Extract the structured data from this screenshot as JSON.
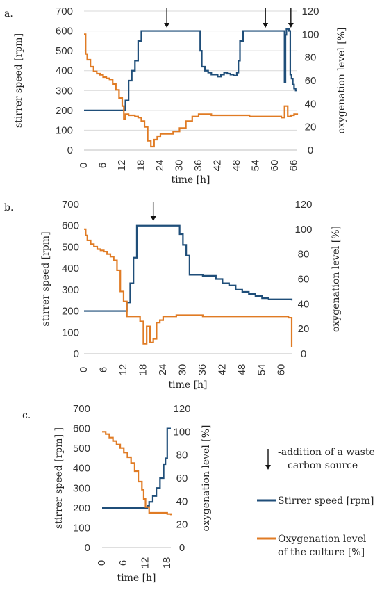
{
  "colors": {
    "stirrer": "#1F4E79",
    "oxygen": "#E07B24"
  },
  "legend": {
    "arrow_text_1": "-addition of a waste",
    "arrow_text_2": "carbon source",
    "stirrer_label": "Stirrer speed [rpm]",
    "oxygen_label_1": "Oxygenation level",
    "oxygen_label_2": "of the culture [%]"
  },
  "chart_data": [
    {
      "panel_label": "a.",
      "type": "line",
      "xlabel": "time [h]",
      "ylabel": "stirrer speed [rpm]",
      "y2label": "oxygenation level [%]",
      "xlim": [
        0,
        67
      ],
      "xticks": [
        0,
        6,
        12,
        18,
        24,
        30,
        36,
        42,
        48,
        54,
        60,
        66
      ],
      "ylim": [
        0,
        700
      ],
      "yticks": [
        0,
        100,
        200,
        300,
        400,
        500,
        600,
        700
      ],
      "y2lim": [
        0,
        120
      ],
      "y2ticks": [
        0,
        20,
        40,
        60,
        80,
        100,
        120
      ],
      "grid": true,
      "arrows_x": [
        26,
        57,
        65
      ],
      "series": [
        {
          "name": "Stirrer speed [rpm]",
          "axis": "left",
          "x": [
            0,
            12,
            13,
            14,
            15,
            16,
            17,
            18,
            20,
            24,
            28,
            32,
            36,
            36.5,
            37,
            38,
            39,
            40,
            41,
            42,
            43,
            44,
            45,
            46,
            47,
            48,
            48.5,
            49,
            50,
            54,
            58,
            62,
            63,
            63.3,
            63.6,
            64,
            64.4,
            64.8,
            65.2,
            65.6,
            66,
            66.5,
            67
          ],
          "values": [
            200,
            200,
            250,
            350,
            400,
            450,
            550,
            600,
            600,
            600,
            600,
            600,
            600,
            500,
            420,
            400,
            390,
            380,
            380,
            370,
            380,
            390,
            385,
            380,
            375,
            390,
            450,
            550,
            600,
            600,
            600,
            600,
            340,
            580,
            610,
            610,
            600,
            380,
            360,
            330,
            310,
            300,
            300
          ]
        },
        {
          "name": "Oxygenation level of the culture [%]",
          "axis": "right",
          "x": [
            0,
            0.5,
            1,
            2,
            3,
            4,
            5,
            6,
            7,
            8,
            9,
            10,
            11,
            12,
            12.5,
            13,
            14,
            15,
            16,
            17,
            18,
            19,
            20,
            21,
            22,
            23,
            24,
            26,
            28,
            30,
            32,
            34,
            36,
            40,
            44,
            48,
            52,
            56,
            60,
            62,
            63,
            64,
            65,
            66,
            67
          ],
          "values": [
            100,
            83,
            78,
            72,
            68,
            66,
            65,
            63,
            62,
            61,
            57,
            52,
            45,
            38,
            27,
            31,
            30,
            30,
            29,
            28,
            25,
            20,
            8,
            3,
            9,
            12,
            14,
            14,
            16,
            19,
            25,
            29,
            31,
            30,
            30,
            30,
            29,
            29,
            29,
            28,
            38,
            29,
            30,
            31,
            30
          ]
        }
      ]
    },
    {
      "panel_label": "b.",
      "type": "line",
      "xlabel": "time [h]",
      "ylabel": "stirrer speed [rpm]",
      "y2label": "oxygenation level [%]",
      "xlim": [
        0,
        63
      ],
      "xticks": [
        0,
        6,
        12,
        18,
        24,
        30,
        36,
        42,
        48,
        54,
        60
      ],
      "ylim": [
        0,
        700
      ],
      "yticks": [
        0,
        100,
        200,
        300,
        400,
        500,
        600,
        700
      ],
      "y2lim": [
        0,
        120
      ],
      "y2ticks": [
        0,
        20,
        40,
        60,
        80,
        100,
        120
      ],
      "grid": false,
      "arrows_x": [
        21
      ],
      "series": [
        {
          "name": "Stirrer speed [rpm]",
          "axis": "left",
          "x": [
            0,
            11,
            12,
            13,
            14,
            15,
            16,
            17,
            20,
            24,
            28,
            29,
            30,
            31,
            32,
            33,
            36,
            40,
            42,
            44,
            46,
            48,
            50,
            52,
            54,
            56,
            58,
            60,
            62,
            63
          ],
          "values": [
            200,
            200,
            200,
            240,
            330,
            450,
            600,
            600,
            600,
            600,
            600,
            560,
            510,
            460,
            370,
            370,
            365,
            350,
            330,
            320,
            300,
            290,
            280,
            270,
            260,
            255,
            255,
            255,
            255,
            250
          ]
        },
        {
          "name": "Oxygenation level of the culture [%]",
          "axis": "right",
          "x": [
            0,
            0.5,
            1,
            2,
            3,
            4,
            5,
            6,
            7,
            8,
            9,
            10,
            11,
            12,
            13,
            14,
            15,
            16,
            17,
            18,
            19,
            20,
            21,
            22,
            23,
            24,
            26,
            28,
            30,
            36,
            42,
            48,
            54,
            58,
            60,
            62,
            63
          ],
          "values": [
            100,
            95,
            91,
            88,
            86,
            84,
            83,
            82,
            80,
            78,
            75,
            67,
            50,
            42,
            30,
            30,
            30,
            30,
            26,
            8,
            22,
            9,
            12,
            25,
            27,
            30,
            30,
            31,
            31,
            30,
            30,
            30,
            30,
            30,
            30,
            29,
            5
          ]
        }
      ]
    },
    {
      "panel_label": "c.",
      "type": "line",
      "xlabel": "time [h]",
      "ylabel": "stirrer speed [rpm] ]",
      "y2label": "oxygenation level [%]",
      "xlim": [
        0,
        19
      ],
      "xticks": [
        0,
        6,
        12,
        18
      ],
      "ylim": [
        0,
        700
      ],
      "yticks": [
        0,
        100,
        200,
        300,
        400,
        500,
        600,
        700
      ],
      "y2lim": [
        0,
        120
      ],
      "y2ticks": [
        0,
        20,
        40,
        60,
        80,
        100,
        120
      ],
      "grid": false,
      "arrows_x": [],
      "series": [
        {
          "name": "Stirrer speed [rpm]",
          "axis": "left",
          "x": [
            0,
            12,
            12.5,
            13,
            14,
            15,
            16,
            17,
            17.5,
            18,
            19
          ],
          "values": [
            200,
            200,
            210,
            230,
            260,
            300,
            350,
            420,
            450,
            600,
            600
          ]
        },
        {
          "name": "Oxygenation level of the culture [%]",
          "axis": "right",
          "x": [
            0,
            1,
            2,
            3,
            4,
            5,
            6,
            7,
            8,
            9,
            10,
            11,
            11.5,
            12,
            13,
            14,
            15,
            16,
            17,
            18,
            19
          ],
          "values": [
            100,
            98,
            95,
            92,
            89,
            86,
            82,
            78,
            73,
            66,
            57,
            50,
            42,
            35,
            30,
            30,
            30,
            30,
            30,
            29,
            28
          ]
        }
      ]
    }
  ]
}
